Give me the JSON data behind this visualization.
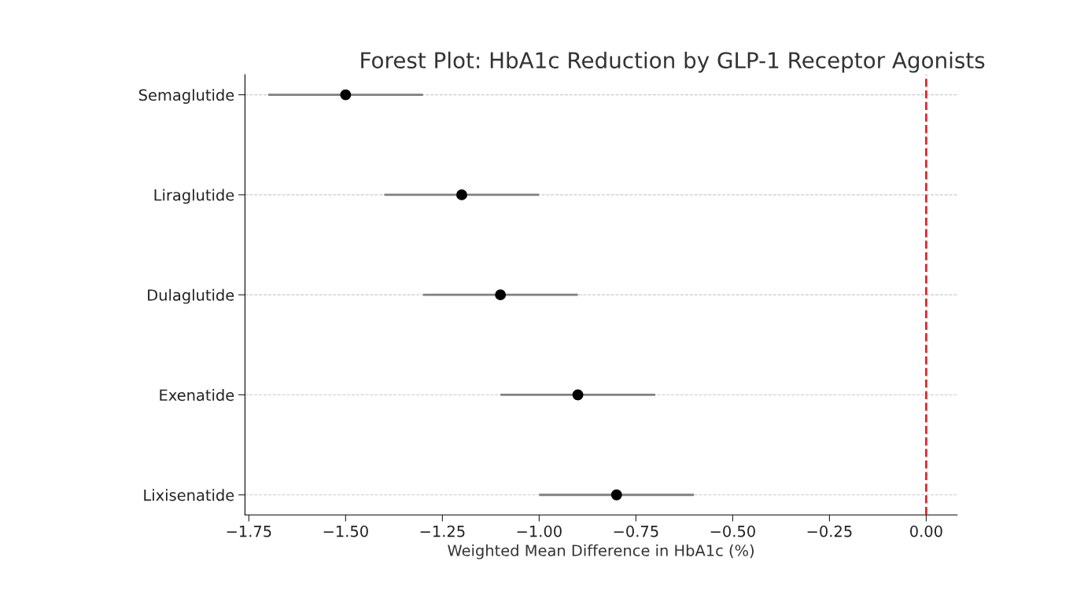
{
  "chart_data": {
    "type": "scatter",
    "title": "Forest Plot: HbA1c Reduction by GLP-1 Receptor Agonists",
    "xlabel": "Weighted Mean Difference in HbA1c (%)",
    "orientation": "horizontal",
    "categories": [
      "Semaglutide",
      "Liraglutide",
      "Dulaglutide",
      "Exenatide",
      "Lixisenatide"
    ],
    "series": [
      {
        "color": "#000000",
        "values": [
          -1.5,
          -1.2,
          -1.1,
          -0.9,
          -0.8
        ],
        "errors": [
          [
            -1.7,
            -1.3
          ],
          [
            -1.4,
            -1.0
          ],
          [
            -1.3,
            -0.9
          ],
          [
            -1.1,
            -0.7
          ],
          [
            -1.0,
            -0.6
          ]
        ]
      }
    ],
    "xlim": [
      -1.76,
      0.08
    ],
    "xticks": [
      {
        "value": -1.75,
        "label": "−1.75"
      },
      {
        "value": -1.5,
        "label": "−1.50"
      },
      {
        "value": -1.25,
        "label": "−1.25"
      },
      {
        "value": -1.0,
        "label": "−1.00"
      },
      {
        "value": -0.75,
        "label": "−0.75"
      },
      {
        "value": -0.5,
        "label": "−0.50"
      },
      {
        "value": -0.25,
        "label": "−0.25"
      },
      {
        "value": 0,
        "label": "0.00"
      }
    ],
    "ref_lines": [
      {
        "axis": "x",
        "value": 0,
        "color": "#e8262a",
        "line_style": "dashed"
      }
    ],
    "grid": "y",
    "marker": "circle"
  }
}
